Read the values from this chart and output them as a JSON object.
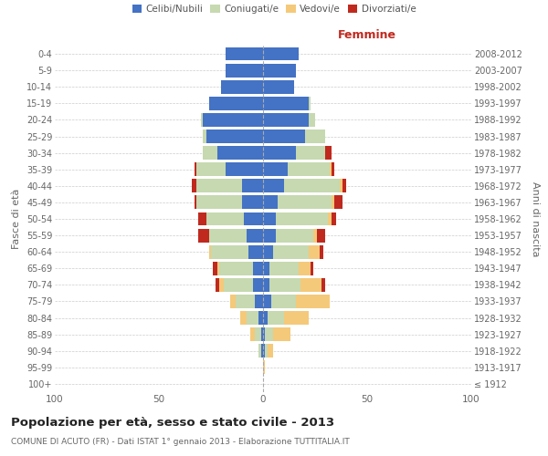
{
  "age_groups": [
    "100+",
    "95-99",
    "90-94",
    "85-89",
    "80-84",
    "75-79",
    "70-74",
    "65-69",
    "60-64",
    "55-59",
    "50-54",
    "45-49",
    "40-44",
    "35-39",
    "30-34",
    "25-29",
    "20-24",
    "15-19",
    "10-14",
    "5-9",
    "0-4"
  ],
  "birth_years": [
    "≤ 1912",
    "1913-1917",
    "1918-1922",
    "1923-1927",
    "1928-1932",
    "1933-1937",
    "1938-1942",
    "1943-1947",
    "1948-1952",
    "1953-1957",
    "1958-1962",
    "1963-1967",
    "1968-1972",
    "1973-1977",
    "1978-1982",
    "1983-1987",
    "1988-1992",
    "1993-1997",
    "1998-2002",
    "2003-2007",
    "2008-2012"
  ],
  "males_celibi": [
    0,
    0,
    1,
    1,
    2,
    4,
    5,
    5,
    7,
    8,
    9,
    10,
    10,
    18,
    22,
    27,
    29,
    26,
    20,
    18,
    18
  ],
  "males_coniugati": [
    0,
    0,
    1,
    3,
    6,
    9,
    14,
    16,
    18,
    18,
    18,
    22,
    22,
    14,
    7,
    2,
    1,
    0,
    0,
    0,
    0
  ],
  "males_vedovi": [
    0,
    0,
    0,
    2,
    3,
    3,
    2,
    1,
    1,
    0,
    0,
    0,
    0,
    0,
    0,
    0,
    0,
    0,
    0,
    0,
    0
  ],
  "males_divorziati": [
    0,
    0,
    0,
    0,
    0,
    0,
    2,
    2,
    0,
    5,
    4,
    1,
    2,
    1,
    0,
    0,
    0,
    0,
    0,
    0,
    0
  ],
  "females_nubili": [
    0,
    0,
    1,
    1,
    2,
    4,
    3,
    3,
    5,
    6,
    6,
    7,
    10,
    12,
    16,
    20,
    22,
    22,
    15,
    16,
    17
  ],
  "females_coniugate": [
    0,
    0,
    1,
    4,
    8,
    12,
    15,
    14,
    17,
    18,
    25,
    26,
    27,
    20,
    14,
    10,
    3,
    1,
    0,
    0,
    0
  ],
  "females_vedove": [
    0,
    1,
    3,
    8,
    12,
    16,
    10,
    6,
    5,
    2,
    2,
    1,
    1,
    1,
    0,
    0,
    0,
    0,
    0,
    0,
    0
  ],
  "females_divorziate": [
    0,
    0,
    0,
    0,
    0,
    0,
    2,
    1,
    2,
    4,
    2,
    4,
    2,
    1,
    3,
    0,
    0,
    0,
    0,
    0,
    0
  ],
  "colors": {
    "celibi_nubili": "#4472c4",
    "coniugati": "#c6d9b0",
    "vedovi": "#f5c97a",
    "divorziati": "#c0291e"
  },
  "xlim": 100,
  "xlabel_right": "Femmine",
  "ylabel_left": "Fasce di età",
  "ylabel_right": "Anni di nascita",
  "title": "Popolazione per età, sesso e stato civile - 2013",
  "subtitle": "COMUNE DI ACUTO (FR) - Dati ISTAT 1° gennaio 2013 - Elaborazione TUTTITALIA.IT",
  "legend_labels": [
    "Celibi/Nubili",
    "Coniugati/e",
    "Vedovi/e",
    "Divorziati/e"
  ],
  "bg_color": "#ffffff",
  "grid_color": "#cccccc",
  "bar_height": 0.82
}
